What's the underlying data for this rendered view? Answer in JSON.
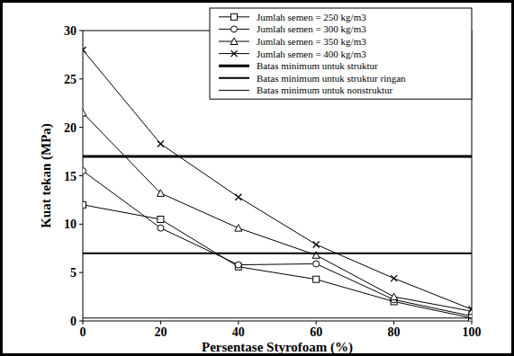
{
  "chart_data": {
    "type": "line",
    "x_label": "Persentase Styrofoam (%)",
    "y_label": "Kuat tekan (MPa)",
    "x": [
      0,
      20,
      40,
      60,
      80,
      100
    ],
    "xlim": [
      0,
      100
    ],
    "xticks": [
      0,
      20,
      40,
      60,
      80,
      100
    ],
    "ylim": [
      0,
      30
    ],
    "yticks": [
      0,
      5,
      10,
      15,
      20,
      25,
      30
    ],
    "grid": false,
    "legend": "upper right",
    "series": [
      {
        "name": "Jumlah semen = 250 kg/m3",
        "color": "#000000",
        "marker": "square",
        "line_style": "solid",
        "values": [
          12,
          10.5,
          5.6,
          4.3,
          2.0,
          0.3
        ]
      },
      {
        "name": "Jumlah semen = 300 kg/m3",
        "color": "#000000",
        "marker": "circle",
        "line_style": "solid",
        "values": [
          15.5,
          9.6,
          5.8,
          5.9,
          2.2,
          0.5
        ]
      },
      {
        "name": "Jumlah semen = 350 kg/m3",
        "color": "#000000",
        "marker": "triangle",
        "line_style": "solid",
        "values": [
          21.5,
          13.2,
          9.6,
          6.8,
          2.5,
          1.0
        ]
      },
      {
        "name": "Jumlah semen = 400 kg/m3",
        "color": "#000000",
        "marker": "x",
        "line_style": "solid",
        "values": [
          28,
          18.3,
          12.8,
          7.9,
          4.4,
          1.2
        ]
      },
      {
        "name": "Batas minimum untuk struktur",
        "color": "#000000",
        "marker": "none",
        "line_style": "thick",
        "values": [
          17,
          17,
          17,
          17,
          17,
          17
        ]
      },
      {
        "name": "Batas minimum untuk struktur ringan",
        "color": "#000000",
        "marker": "none",
        "line_style": "medium",
        "values": [
          7,
          7,
          7,
          7,
          7,
          7
        ]
      },
      {
        "name": "Batas minimum untuk nonstruktur",
        "color": "#000000",
        "marker": "none",
        "line_style": "thin",
        "values": [
          0.3,
          0.3,
          0.3,
          0.3,
          0.3,
          0.3
        ]
      }
    ]
  }
}
